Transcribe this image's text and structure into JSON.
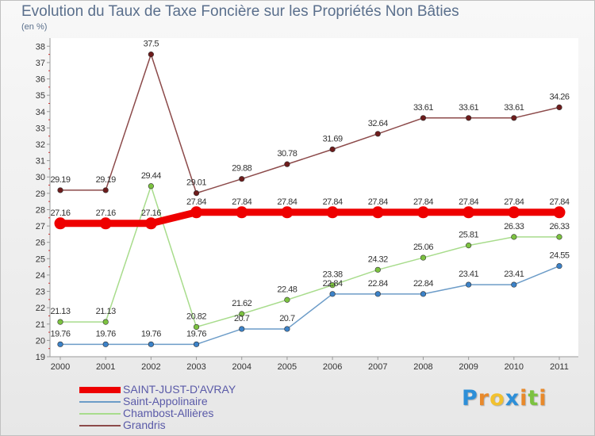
{
  "header": {
    "title": "Evolution du Taux de Taxe Foncière sur les Propriétés Non Bâties",
    "subtitle": "(en %)"
  },
  "logo": {
    "text": "Proxiti",
    "letter_colors": [
      "#2d8fd8",
      "#e8892b",
      "#f2c12e",
      "#2d8fd8",
      "#e8892b",
      "#7cc240",
      "#e8892b"
    ]
  },
  "chart_data": {
    "type": "line",
    "title": "Evolution du Taux de Taxe Foncière sur les Propriétés Non Bâties",
    "subtitle": "(en %)",
    "xlabel": "",
    "ylabel": "",
    "x": [
      "2000",
      "2001",
      "2002",
      "2003",
      "2004",
      "2005",
      "2006",
      "2007",
      "2008",
      "2009",
      "2010",
      "2011"
    ],
    "ylim": [
      19,
      38.5
    ],
    "yticks": [
      19,
      20,
      21,
      22,
      23,
      24,
      25,
      26,
      27,
      28,
      29,
      30,
      31,
      32,
      33,
      34,
      35,
      36,
      37,
      38
    ],
    "grid": false,
    "legend_position": "bottom-left",
    "series": [
      {
        "name": "SAINT-JUST-D'AVRAY",
        "color": "#ee0000",
        "values": [
          27.16,
          27.16,
          27.16,
          27.84,
          27.84,
          27.84,
          27.84,
          27.84,
          27.84,
          27.84,
          27.84,
          27.84
        ],
        "labels": [
          "27.16",
          "27.16",
          "27.16",
          "27.84",
          "27.84",
          "27.84",
          "27.84",
          "27.84",
          "27.84",
          "27.84",
          "27.84",
          "27.84"
        ]
      },
      {
        "name": "Saint-Appolinaire",
        "color": "#6c9cc8",
        "point_color": "#3c82c8",
        "values": [
          19.76,
          19.76,
          19.76,
          19.76,
          20.7,
          20.7,
          22.84,
          22.84,
          22.84,
          23.41,
          23.41,
          24.55
        ],
        "labels": [
          "19.76",
          "19.76",
          "19.76",
          "19.76",
          "20.7",
          "20.7",
          "22.84",
          "22.84",
          "22.84",
          "23.41",
          "23.41",
          "24.55"
        ]
      },
      {
        "name": "Chambost-Allières",
        "color": "#a8dc8c",
        "point_color": "#7cc240",
        "values": [
          21.13,
          21.13,
          29.44,
          20.82,
          21.62,
          22.48,
          23.38,
          24.32,
          25.06,
          25.81,
          26.33,
          26.33
        ],
        "labels": [
          "21.13",
          "21.13",
          "29.44",
          "20.82",
          "21.62",
          "22.48",
          "23.38",
          "24.32",
          "25.06",
          "25.81",
          "26.33",
          "26.33"
        ]
      },
      {
        "name": "Grandris",
        "color": "#8c4a4a",
        "point_color": "#6e1c1c",
        "values": [
          29.19,
          29.19,
          37.5,
          29.01,
          29.88,
          30.78,
          31.69,
          32.64,
          33.61,
          33.61,
          33.61,
          34.26
        ],
        "labels": [
          "29.19",
          "29.19",
          "37.5",
          "29.01",
          "29.88",
          "30.78",
          "31.69",
          "32.64",
          "33.61",
          "33.61",
          "33.61",
          "34.26"
        ]
      }
    ]
  }
}
